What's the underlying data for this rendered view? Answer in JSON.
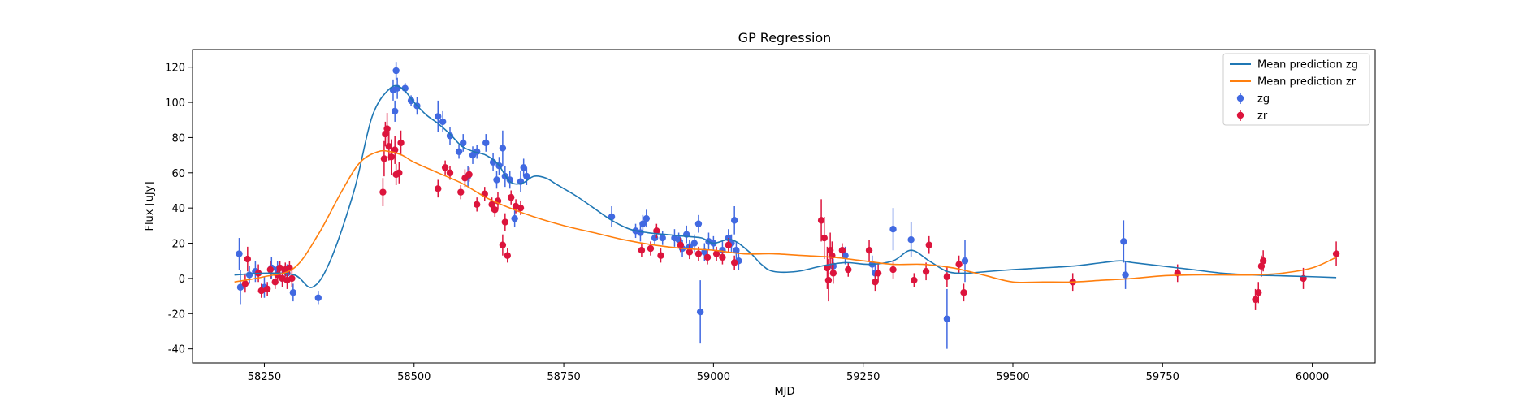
{
  "chart_data": {
    "type": "scatter",
    "title": "GP Regression",
    "xlabel": "MJD",
    "ylabel": "Flux [uJy]",
    "xlim": [
      58130,
      60105
    ],
    "ylim": [
      -48,
      130
    ],
    "xticks": [
      58250,
      58500,
      58750,
      59000,
      59250,
      59500,
      59750,
      60000
    ],
    "yticks": [
      -40,
      -20,
      0,
      20,
      40,
      60,
      80,
      100,
      120
    ],
    "grid": false,
    "legend_position": "top-right",
    "series": [
      {
        "name": "Mean prediction zg",
        "kind": "line",
        "color": "#1f77b4",
        "x": [
          58200,
          58250,
          58300,
          58330,
          58360,
          58400,
          58430,
          58460,
          58480,
          58500,
          58520,
          58540,
          58560,
          58580,
          58600,
          58620,
          58640,
          58660,
          58680,
          58700,
          58720,
          58740,
          58770,
          58800,
          58830,
          58860,
          58890,
          58920,
          58950,
          58980,
          59000,
          59030,
          59060,
          59080,
          59100,
          59140,
          59180,
          59220,
          59260,
          59300,
          59330,
          59360,
          59390,
          59420,
          59460,
          59500,
          59550,
          59600,
          59650,
          59680,
          59700,
          59750,
          59800,
          59850,
          59900,
          59950,
          60000,
          60040
        ],
        "y": [
          2,
          3,
          2,
          -5,
          10,
          50,
          92,
          108,
          108,
          100,
          93,
          88,
          82,
          75,
          72,
          70,
          65,
          55,
          54,
          58,
          57,
          53,
          47,
          40,
          33,
          28,
          26,
          25,
          24,
          23,
          20,
          22,
          15,
          8,
          4,
          4,
          7,
          9,
          8,
          10,
          16,
          10,
          4,
          3,
          4,
          5,
          6,
          7,
          9,
          10,
          9,
          7,
          5,
          3,
          2,
          1.5,
          1,
          0.5
        ]
      },
      {
        "name": "Mean prediction zr",
        "kind": "line",
        "color": "#ff7f0e",
        "x": [
          58200,
          58250,
          58300,
          58340,
          58380,
          58410,
          58440,
          58460,
          58480,
          58500,
          58540,
          58580,
          58620,
          58660,
          58700,
          58750,
          58800,
          58850,
          58900,
          58950,
          59000,
          59050,
          59100,
          59150,
          59200,
          59250,
          59300,
          59350,
          59400,
          59450,
          59500,
          59550,
          59600,
          59650,
          59700,
          59750,
          59800,
          59850,
          59900,
          59950,
          60000,
          60040
        ],
        "y": [
          -2,
          1,
          6,
          25,
          50,
          66,
          72,
          72,
          70,
          66,
          60,
          54,
          46,
          40,
          35,
          30,
          26,
          22,
          19,
          17,
          16,
          14,
          14,
          13,
          12,
          10,
          8,
          8,
          6,
          2,
          -2,
          -2,
          -2,
          -1,
          0,
          1.5,
          2,
          2,
          2,
          3,
          6,
          12
        ]
      },
      {
        "name": "zg",
        "kind": "errorbar",
        "color": "#4169e1",
        "x": [
          58208,
          58210,
          58225,
          58235,
          58250,
          58262,
          58272,
          58280,
          58288,
          58298,
          58340,
          58465,
          58468,
          58470,
          58472,
          58485,
          58495,
          58505,
          58540,
          58548,
          58560,
          58575,
          58582,
          58590,
          58598,
          58605,
          58620,
          58632,
          58638,
          58642,
          58648,
          58652,
          58660,
          58668,
          58678,
          58683,
          58688,
          58830,
          58870,
          58878,
          58882,
          58888,
          58902,
          58915,
          58935,
          58942,
          58948,
          58955,
          58960,
          58968,
          58975,
          58978,
          58985,
          58992,
          59000,
          59015,
          59025,
          59030,
          59035,
          59038,
          59042,
          59200,
          59220,
          59265,
          59270,
          59300,
          59330,
          59390,
          59420,
          59685,
          59688
        ],
        "y": [
          14,
          -5,
          2,
          4,
          -5,
          6,
          5,
          0,
          3,
          -8,
          -11,
          107,
          95,
          118,
          108,
          108,
          101,
          98,
          92,
          89,
          81,
          72,
          77,
          58,
          70,
          72,
          77,
          66,
          56,
          64,
          74,
          58,
          56,
          34,
          55,
          63,
          58,
          35,
          27,
          26,
          31,
          34,
          23,
          23,
          23,
          22,
          17,
          25,
          18,
          20,
          31,
          -19,
          15,
          21,
          20,
          16,
          23,
          20,
          33,
          16,
          10,
          7,
          13,
          8,
          3,
          28,
          22,
          -23,
          10,
          21,
          2
        ],
        "err": [
          9,
          10,
          5,
          6,
          6,
          6,
          5,
          5,
          5,
          5,
          4,
          6,
          6,
          5,
          6,
          3,
          3,
          5,
          9,
          6,
          5,
          4,
          5,
          6,
          5,
          4,
          5,
          5,
          5,
          5,
          10,
          6,
          5,
          5,
          6,
          5,
          5,
          6,
          4,
          5,
          5,
          5,
          4,
          4,
          5,
          4,
          5,
          5,
          4,
          5,
          5,
          18,
          5,
          5,
          4,
          5,
          5,
          5,
          8,
          5,
          5,
          4,
          5,
          5,
          5,
          12,
          10,
          17,
          12,
          12,
          8
        ]
      },
      {
        "name": "zr",
        "kind": "errorbar",
        "color": "#dc143c",
        "x": [
          58218,
          58222,
          58240,
          58245,
          58255,
          58260,
          58268,
          58272,
          58276,
          58280,
          58285,
          58288,
          58292,
          58296,
          58448,
          58450,
          58452,
          58455,
          58458,
          58462,
          58468,
          58470,
          58475,
          58478,
          58540,
          58552,
          58560,
          58578,
          58585,
          58592,
          58605,
          58618,
          58630,
          58635,
          58640,
          58648,
          58652,
          58656,
          58662,
          58670,
          58678,
          58880,
          58895,
          58905,
          58912,
          58945,
          58960,
          58975,
          58990,
          59005,
          59015,
          59025,
          59035,
          59180,
          59185,
          59190,
          59192,
          59195,
          59198,
          59200,
          59215,
          59225,
          59260,
          59270,
          59275,
          59300,
          59335,
          59355,
          59360,
          59390,
          59410,
          59418,
          59600,
          59775,
          59905,
          59910,
          59915,
          59918,
          59985,
          60040
        ],
        "y": [
          -3,
          11,
          3,
          -7,
          -6,
          5,
          -2,
          2,
          6,
          0,
          5,
          -1,
          6,
          0,
          49,
          68,
          82,
          85,
          75,
          69,
          73,
          59,
          60,
          77,
          51,
          63,
          60,
          49,
          57,
          59,
          42,
          48,
          42,
          39,
          44,
          19,
          32,
          13,
          46,
          41,
          40,
          16,
          17,
          27,
          13,
          19,
          15,
          14,
          12,
          14,
          12,
          19,
          9,
          33,
          23,
          6,
          -1,
          16,
          13,
          3,
          16,
          5,
          16,
          -2,
          3,
          5,
          -1,
          4,
          19,
          1,
          8,
          -8,
          -2,
          3,
          -12,
          -8,
          7,
          10,
          0,
          14
        ],
        "err": [
          5,
          7,
          5,
          4,
          4,
          5,
          4,
          5,
          4,
          5,
          4,
          5,
          4,
          5,
          8,
          10,
          7,
          9,
          8,
          10,
          8,
          6,
          6,
          7,
          5,
          4,
          4,
          4,
          5,
          4,
          4,
          4,
          4,
          4,
          5,
          6,
          5,
          4,
          4,
          4,
          4,
          4,
          4,
          4,
          4,
          4,
          4,
          4,
          4,
          4,
          4,
          4,
          4,
          12,
          12,
          12,
          12,
          10,
          8,
          6,
          4,
          4,
          6,
          5,
          5,
          5,
          4,
          5,
          5,
          6,
          5,
          5,
          5,
          5,
          6,
          6,
          6,
          6,
          6,
          7
        ]
      }
    ]
  }
}
